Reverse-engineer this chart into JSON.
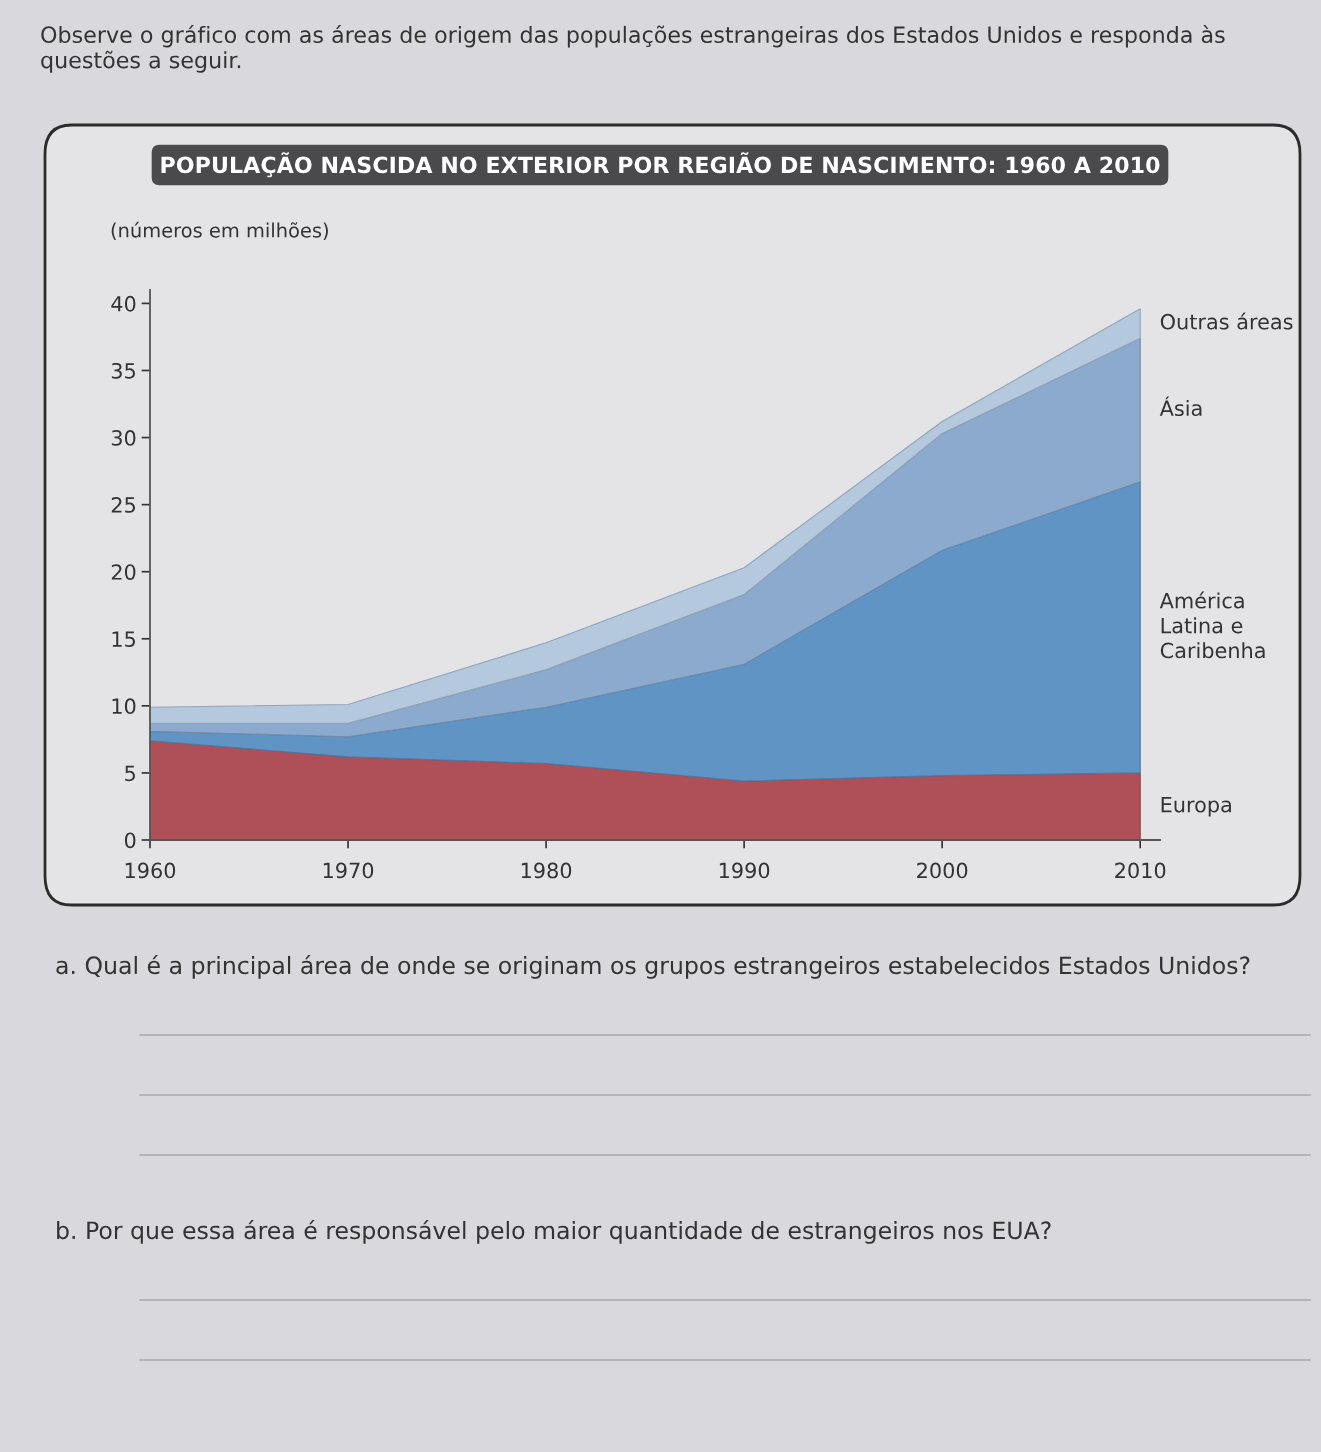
{
  "chart_data": {
    "type": "area",
    "stacked": true,
    "title": "POPULAÇÃO NASCIDA NO EXTERIOR POR REGIÃO DE NASCIMENTO: 1960 A 2010",
    "subtitle": "(números em milhões)",
    "x": [
      1960,
      1970,
      1980,
      1990,
      2000,
      2010
    ],
    "series": [
      {
        "name": "Europa",
        "color": "#af5059",
        "values": [
          7.4,
          6.2,
          5.7,
          4.4,
          4.8,
          5.0
        ]
      },
      {
        "name": "América Latina e Caribenha",
        "color": "#5f94c4",
        "values": [
          0.7,
          1.5,
          4.2,
          8.7,
          16.8,
          21.7
        ]
      },
      {
        "name": "Ásia",
        "color": "#8caacd",
        "values": [
          0.6,
          1.0,
          2.8,
          5.2,
          8.7,
          10.7
        ]
      },
      {
        "name": "Outras áreas",
        "color": "#b4c8de",
        "values": [
          1.2,
          1.4,
          2.0,
          2.0,
          0.9,
          2.2
        ]
      }
    ],
    "xlim": [
      1960,
      2011
    ],
    "ylim": [
      0,
      41
    ],
    "xticks": [
      1960,
      1970,
      1980,
      1990,
      2000,
      2010
    ],
    "yticks": [
      0,
      5,
      10,
      15,
      20,
      25,
      30,
      35,
      40
    ],
    "annotations": [
      "Observe o gráfico com as áreas de origem das populações estrangeiras dos Estados Unidos e responda às questões a seguir.",
      "a. Qual é a principal área de onde se originam os grupos estrangeiros estabelecidos Estados Unidos?",
      "b. Por que essa área é responsável pelo maior quantidade de estrangeiros nos EUA?"
    ]
  }
}
